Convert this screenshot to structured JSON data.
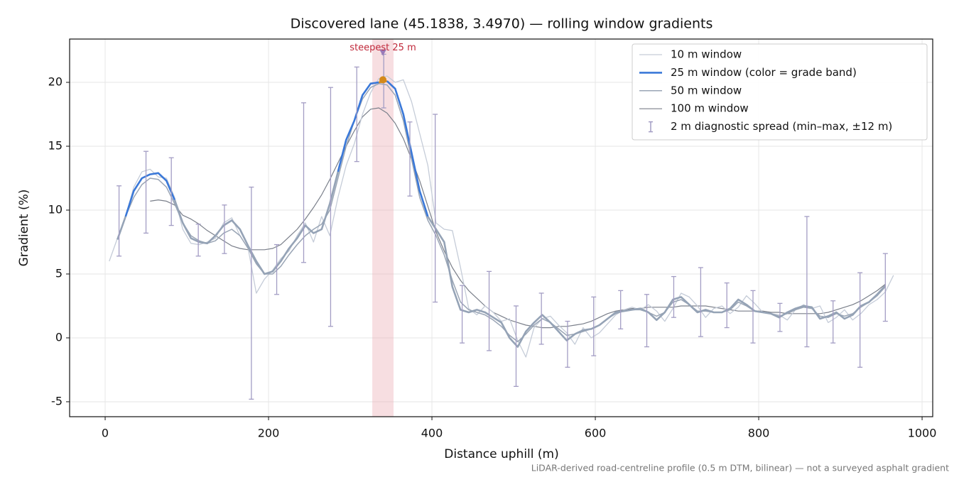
{
  "chart_data": {
    "type": "line",
    "title": "Discovered lane (45.1838, 3.4970) — rolling window gradients",
    "x_label": "Distance uphill (m)",
    "y_label": "Gradient (%)",
    "footnote": "LiDAR-derived road-centreline profile (0.5 m DTM, bilinear) — not a surveyed asphalt gradient",
    "xlim": [
      -43.5,
      1013
    ],
    "ylim": [
      -6.17,
      23.39
    ],
    "xticks": [
      0,
      200,
      400,
      600,
      800,
      1000
    ],
    "yticks": [
      -5,
      0,
      5,
      10,
      15,
      20
    ],
    "grid": true,
    "legend": "upper right",
    "x": [
      5,
      15,
      25,
      35,
      45,
      55,
      65,
      75,
      85,
      95,
      105,
      115,
      125,
      135,
      145,
      155,
      165,
      175,
      185,
      195,
      205,
      215,
      225,
      235,
      245,
      255,
      265,
      275,
      285,
      295,
      305,
      315,
      325,
      335,
      345,
      355,
      365,
      375,
      385,
      395,
      405,
      415,
      425,
      435,
      445,
      455,
      465,
      475,
      485,
      495,
      505,
      515,
      525,
      535,
      545,
      555,
      565,
      575,
      585,
      595,
      605,
      615,
      625,
      635,
      645,
      655,
      665,
      675,
      685,
      695,
      705,
      715,
      725,
      735,
      745,
      755,
      765,
      775,
      785,
      795,
      805,
      815,
      825,
      835,
      845,
      855,
      865,
      875,
      885,
      895,
      905,
      915,
      925,
      935,
      945,
      955,
      965
    ],
    "series": [
      {
        "name": "10 m window",
        "color": "#c5ccd8",
        "width": 1.3,
        "values": [
          6,
          7.8,
          9.5,
          11.8,
          13,
          13.2,
          12.6,
          12.5,
          11,
          8.5,
          7.4,
          7.3,
          7.5,
          7.8,
          9,
          9.4,
          8,
          7,
          3.5,
          4.6,
          5.3,
          6.2,
          6.8,
          8,
          9,
          7.5,
          9.5,
          8,
          11,
          13.5,
          15.2,
          17.5,
          19.2,
          20.3,
          20.5,
          20,
          20.2,
          18.5,
          16,
          13.5,
          9,
          8.5,
          8.4,
          5.5,
          2.3,
          1.8,
          2.5,
          2,
          1.3,
          1.5,
          -0.2,
          -1.5,
          0.8,
          1.5,
          1.7,
          1,
          0.4,
          -0.5,
          0.8,
          0,
          0.4,
          1.1,
          1.8,
          2.2,
          2.4,
          2.2,
          2.6,
          2.1,
          1.3,
          2.3,
          3.5,
          3.2,
          2.5,
          1.6,
          2.3,
          2.5,
          1.9,
          2.4,
          3.3,
          2.7,
          2,
          1.9,
          1.8,
          1.4,
          2.2,
          2.6,
          2.3,
          2.5,
          1.2,
          1.6,
          2.2,
          1.4,
          1.9,
          2.6,
          3,
          3.6,
          4.9
        ]
      },
      {
        "name": "25 m window (color = grade band)",
        "color": "#3a78d8",
        "width": 2.6,
        "values": [
          null,
          7.7,
          9.5,
          11.5,
          12.5,
          12.8,
          12.9,
          12.3,
          10.8,
          9,
          7.8,
          7.5,
          7.4,
          8,
          8.8,
          9.2,
          8.5,
          7.2,
          6,
          5,
          5.2,
          6,
          7,
          7.8,
          8.8,
          8.2,
          8.5,
          10.5,
          13,
          15.5,
          17,
          19,
          19.9,
          20,
          20.1,
          19.5,
          17.5,
          14.5,
          11.5,
          9.5,
          8.5,
          7.5,
          4,
          2.2,
          2,
          2.2,
          2,
          1.6,
          1.2,
          0,
          -0.7,
          0.5,
          1.2,
          1.8,
          1.2,
          0.5,
          -0.2,
          0.3,
          0.6,
          0.7,
          1,
          1.5,
          2,
          2.1,
          2.2,
          2.3,
          2,
          1.4,
          2,
          3,
          3.2,
          2.6,
          2,
          2.2,
          2,
          2,
          2.3,
          3,
          2.6,
          2.1,
          2,
          1.9,
          1.6,
          2,
          2.3,
          2.5,
          2.4,
          1.5,
          1.7,
          2,
          1.5,
          1.8,
          2.5,
          2.8,
          3.4,
          4.1,
          null
        ],
        "point_colors": [
          "#95a3b6",
          "#95a3b6",
          "#3a78d8",
          "#3a78d8",
          "#3a78d8",
          "#3a78d8",
          "#3a78d8",
          "#3a78d8",
          "#95a3b6",
          "#95a3b6",
          "#95a3b6",
          "#95a3b6",
          "#95a3b6",
          "#95a3b6",
          "#95a3b6",
          "#95a3b6",
          "#95a3b6",
          "#95a3b6",
          "#95a3b6",
          "#95a3b6",
          "#95a3b6",
          "#95a3b6",
          "#95a3b6",
          "#95a3b6",
          "#95a3b6",
          "#95a3b6",
          "#95a3b6",
          "#95a3b6",
          "#3a78d8",
          "#3a78d8",
          "#3a78d8",
          "#3a78d8",
          "#3a78d8",
          "#d4891a",
          "#3a78d8",
          "#3a78d8",
          "#3a78d8",
          "#3a78d8",
          "#3a78d8",
          "#95a3b6",
          "#95a3b6",
          "#95a3b6",
          "#95a3b6",
          "#95a3b6",
          "#95a3b6",
          "#95a3b6",
          "#95a3b6",
          "#95a3b6",
          "#95a3b6",
          "#95a3b6",
          "#95a3b6",
          "#95a3b6",
          "#95a3b6",
          "#95a3b6",
          "#95a3b6",
          "#95a3b6",
          "#95a3b6",
          "#95a3b6",
          "#95a3b6",
          "#95a3b6",
          "#95a3b6",
          "#95a3b6",
          "#95a3b6",
          "#95a3b6",
          "#95a3b6",
          "#95a3b6",
          "#95a3b6",
          "#95a3b6",
          "#95a3b6",
          "#95a3b6",
          "#95a3b6",
          "#95a3b6",
          "#95a3b6",
          "#95a3b6",
          "#95a3b6",
          "#95a3b6",
          "#95a3b6",
          "#95a3b6",
          "#95a3b6",
          "#95a3b6",
          "#95a3b6",
          "#95a3b6",
          "#95a3b6",
          "#95a3b6",
          "#95a3b6",
          "#95a3b6",
          "#95a3b6",
          "#95a3b6",
          "#95a3b6",
          "#95a3b6",
          "#95a3b6",
          "#95a3b6",
          "#95a3b6",
          "#95a3b6",
          "#95a3b6",
          "#95a3b6",
          "#95a3b6"
        ]
      },
      {
        "name": "50 m window",
        "color": "#9aa5b5",
        "width": 1.5,
        "values": [
          null,
          null,
          9.5,
          11,
          12,
          12.5,
          12.4,
          11.8,
          10.5,
          9,
          8,
          7.6,
          7.4,
          7.6,
          8.2,
          8.5,
          8,
          7,
          5.8,
          5,
          5,
          5.6,
          6.5,
          7.3,
          8,
          8.5,
          8.9,
          10,
          12.5,
          15,
          17,
          18.7,
          19.6,
          19.9,
          19.8,
          19,
          17,
          14,
          11,
          9.2,
          8,
          6.5,
          4.5,
          2.8,
          2.2,
          2,
          1.8,
          1.4,
          0.9,
          0.2,
          -0.3,
          0.3,
          1,
          1.5,
          1.2,
          0.7,
          0.2,
          0.3,
          0.5,
          0.7,
          1,
          1.5,
          1.9,
          2.1,
          2.2,
          2.2,
          2,
          1.7,
          2,
          2.8,
          3,
          2.6,
          2.1,
          2.1,
          2,
          2,
          2.2,
          2.8,
          2.5,
          2.1,
          2,
          1.9,
          1.7,
          1.9,
          2.2,
          2.4,
          2.3,
          1.7,
          1.6,
          1.9,
          1.7,
          1.9,
          2.4,
          2.8,
          3.3,
          4,
          null
        ]
      },
      {
        "name": "100 m window",
        "color": "#7a7f8a",
        "width": 1.2,
        "values": [
          null,
          null,
          null,
          null,
          null,
          10.7,
          10.8,
          10.7,
          10.4,
          9.6,
          9.3,
          8.9,
          8.4,
          8,
          7.6,
          7.2,
          7,
          6.9,
          6.9,
          6.9,
          7,
          7.3,
          7.9,
          8.5,
          9.3,
          10.2,
          11.2,
          12.4,
          13.7,
          15,
          16.2,
          17.3,
          17.9,
          18,
          17.6,
          16.8,
          15.6,
          14,
          12.3,
          10.3,
          8.3,
          6.8,
          5.5,
          4.5,
          3.7,
          3.1,
          2.5,
          2,
          1.7,
          1.4,
          1.2,
          1,
          0.9,
          0.8,
          0.8,
          0.9,
          0.9,
          1,
          1.1,
          1.3,
          1.6,
          1.9,
          2.1,
          2.2,
          2.3,
          2.3,
          2.4,
          2.4,
          2.4,
          2.4,
          2.5,
          2.5,
          2.5,
          2.5,
          2.4,
          2.3,
          2.2,
          2.1,
          2.1,
          2.1,
          2.1,
          2,
          2,
          1.9,
          1.9,
          1.9,
          1.9,
          1.9,
          2,
          2.2,
          2.4,
          2.6,
          2.9,
          3.3,
          3.7,
          4.2,
          null
        ]
      }
    ],
    "draw_order": [
      3,
      0,
      2,
      1
    ],
    "error_bars": {
      "name": "2 m diagnostic spread (min–max, ±12 m)",
      "color": "#a39dc4",
      "x": [
        17,
        50,
        81,
        114,
        146,
        179,
        210,
        243,
        276,
        308,
        341,
        373,
        404,
        437,
        470,
        503,
        534,
        566,
        598,
        631,
        663,
        696,
        729,
        761,
        793,
        826,
        859,
        891,
        924,
        955
      ],
      "low": [
        6.4,
        8.2,
        8.8,
        6.4,
        6.6,
        -4.8,
        3.4,
        5.9,
        0.9,
        13.8,
        18,
        11.1,
        2.8,
        -0.4,
        -1,
        -3.8,
        -0.5,
        -2.3,
        -1.4,
        0.7,
        -0.7,
        1.6,
        0.1,
        0.8,
        -0.4,
        0.5,
        -0.7,
        -0.4,
        -2.3,
        1.3
      ],
      "high": [
        11.9,
        14.6,
        14.1,
        8.9,
        10.4,
        11.8,
        7.3,
        18.4,
        19.6,
        21.2,
        22.2,
        16.9,
        17.5,
        4.1,
        5.2,
        2.5,
        3.5,
        1.3,
        3.2,
        3.7,
        3.4,
        4.8,
        5.5,
        4.3,
        3.7,
        2.7,
        9.5,
        2.9,
        5.1,
        6.6
      ]
    },
    "highlight": {
      "xlim": [
        327,
        353
      ],
      "color": "#e8a0a8",
      "label": "steepest 25 m",
      "label_color": "#c0283a",
      "marker_x": 340,
      "marker_y": 22.3,
      "marker_color": "#9a7ab8"
    },
    "peak_marker": {
      "x": 340,
      "y": 20.2,
      "color": "#d4891a"
    }
  }
}
